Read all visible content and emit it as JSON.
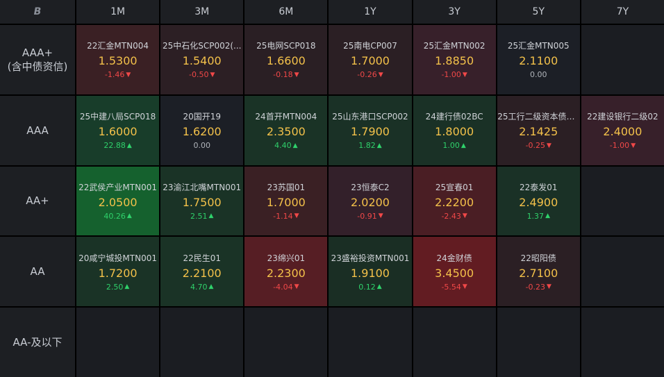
{
  "logo": "B",
  "tenors": [
    "1M",
    "3M",
    "6M",
    "1Y",
    "3Y",
    "5Y",
    "7Y"
  ],
  "rows": [
    {
      "rating_lines": [
        "AAA+",
        "(含中债资信)"
      ],
      "cells": [
        {
          "name": "22汇金MTN004",
          "yield": "1.5300",
          "change": "-1.46",
          "dir": "down",
          "bg": "#3a2024"
        },
        {
          "name": "25中石化SCP002(...",
          "yield": "1.5400",
          "change": "-0.50",
          "dir": "down",
          "bg": "#2c1f24"
        },
        {
          "name": "25电网SCP018",
          "yield": "1.6600",
          "change": "-0.18",
          "dir": "down",
          "bg": "#2a1f24"
        },
        {
          "name": "25南电CP007",
          "yield": "1.7000",
          "change": "-0.26",
          "dir": "down",
          "bg": "#2b1f24"
        },
        {
          "name": "25汇金MTN002",
          "yield": "1.8850",
          "change": "-1.00",
          "dir": "down",
          "bg": "#37202a"
        },
        {
          "name": "25汇金MTN005",
          "yield": "2.1100",
          "change": "0.00",
          "dir": "flat",
          "bg": "#1c1f26"
        },
        null
      ]
    },
    {
      "rating_lines": [
        "AAA"
      ],
      "cells": [
        {
          "name": "25中建八局SCP018",
          "yield": "1.6000",
          "change": "22.88",
          "dir": "up",
          "bg": "#183d2a"
        },
        {
          "name": "20国开19",
          "yield": "1.6200",
          "change": "0.00",
          "dir": "flat",
          "bg": "#1c1f26"
        },
        {
          "name": "24首开MTN004",
          "yield": "2.3500",
          "change": "4.40",
          "dir": "up",
          "bg": "#1a3326"
        },
        {
          "name": "25山东港口SCP002",
          "yield": "1.7900",
          "change": "1.82",
          "dir": "up",
          "bg": "#1a3126"
        },
        {
          "name": "24建行债02BC",
          "yield": "1.8000",
          "change": "1.00",
          "dir": "up",
          "bg": "#1a3126"
        },
        {
          "name": "25工行二级资本债0...",
          "yield": "2.1425",
          "change": "-0.25",
          "dir": "down",
          "bg": "#2b1f24"
        },
        {
          "name": "22建设银行二级02",
          "yield": "2.4000",
          "change": "-1.00",
          "dir": "down",
          "bg": "#37202a"
        }
      ]
    },
    {
      "rating_lines": [
        "AA+"
      ],
      "cells": [
        {
          "name": "22武侯产业MTN001",
          "yield": "2.0500",
          "change": "40.26",
          "dir": "up",
          "bg": "#15612e"
        },
        {
          "name": "23渝江北嘴MTN001",
          "yield": "1.7500",
          "change": "2.51",
          "dir": "up",
          "bg": "#1a3326"
        },
        {
          "name": "23苏国01",
          "yield": "1.7000",
          "change": "-1.14",
          "dir": "down",
          "bg": "#3a2024"
        },
        {
          "name": "23恒泰C2",
          "yield": "2.0200",
          "change": "-0.91",
          "dir": "down",
          "bg": "#33202a"
        },
        {
          "name": "25宣春01",
          "yield": "2.2200",
          "change": "-2.43",
          "dir": "down",
          "bg": "#4a1e24"
        },
        {
          "name": "22泰发01",
          "yield": "2.4900",
          "change": "1.37",
          "dir": "up",
          "bg": "#1a3126"
        },
        null
      ]
    },
    {
      "rating_lines": [
        "AA"
      ],
      "cells": [
        {
          "name": "20咸宁城投MTN001",
          "yield": "1.7200",
          "change": "2.50",
          "dir": "up",
          "bg": "#1a3326"
        },
        {
          "name": "22民生01",
          "yield": "2.2100",
          "change": "4.70",
          "dir": "up",
          "bg": "#1a3326"
        },
        {
          "name": "23绵兴01",
          "yield": "2.2300",
          "change": "-4.04",
          "dir": "down",
          "bg": "#561e24"
        },
        {
          "name": "23盛裕投资MTN001",
          "yield": "1.9100",
          "change": "0.12",
          "dir": "up",
          "bg": "#1a2e24"
        },
        {
          "name": "24金财债",
          "yield": "3.4500",
          "change": "-5.54",
          "dir": "down",
          "bg": "#621c22"
        },
        {
          "name": "22昭阳债",
          "yield": "2.7100",
          "change": "-0.23",
          "dir": "down",
          "bg": "#2b1f24"
        },
        null
      ]
    },
    {
      "rating_lines": [
        "AA-及以下"
      ],
      "cells": [
        null,
        null,
        null,
        null,
        null,
        null,
        null
      ]
    }
  ]
}
